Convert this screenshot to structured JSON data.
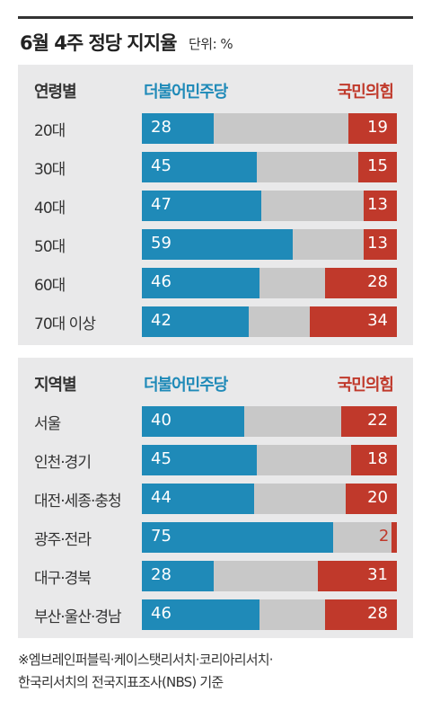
{
  "title": "6월 4주 정당 지지율",
  "unit": "단위: %",
  "party_dem": "더불어민주당",
  "party_ppp": "국민의힘",
  "colors": {
    "dem": "#1f8ab8",
    "ppp": "#c0392b",
    "other": "#c8c8c8",
    "panel": "#e9e9ea"
  },
  "chart_data": [
    {
      "type": "bar",
      "header": "연령별",
      "categories": [
        "20대",
        "30대",
        "40대",
        "50대",
        "60대",
        "70대 이상"
      ],
      "series": [
        {
          "name": "더불어민주당",
          "values": [
            28,
            45,
            47,
            59,
            46,
            42
          ]
        },
        {
          "name": "국민의힘",
          "values": [
            19,
            15,
            13,
            13,
            28,
            34
          ]
        }
      ],
      "xlim": [
        0,
        100
      ]
    },
    {
      "type": "bar",
      "header": "지역별",
      "categories": [
        "서울",
        "인천·경기",
        "대전·세종·충청",
        "광주·전라",
        "대구·경북",
        "부산·울산·경남"
      ],
      "series": [
        {
          "name": "더불어민주당",
          "values": [
            40,
            45,
            44,
            75,
            28,
            46
          ]
        },
        {
          "name": "국민의힘",
          "values": [
            22,
            18,
            20,
            2,
            31,
            28
          ]
        }
      ],
      "xlim": [
        0,
        100
      ]
    }
  ],
  "footnote": [
    "※엠브레인퍼블릭·케이스탯리서치·코리아리서치·",
    "한국리서치의 전국지표조사(NBS) 기준"
  ]
}
